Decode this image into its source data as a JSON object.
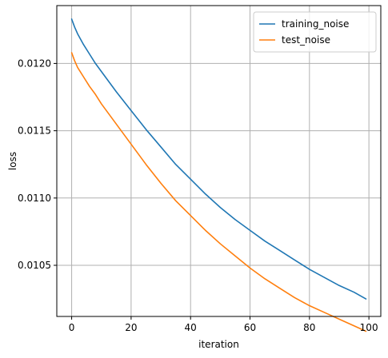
{
  "chart_data": {
    "type": "line",
    "title": "",
    "xlabel": "iteration",
    "ylabel": "loss",
    "xlim": [
      -5,
      104
    ],
    "ylim": [
      0.01012,
      0.01243
    ],
    "xticks": [
      0,
      20,
      40,
      60,
      80,
      100
    ],
    "yticks": [
      0.0105,
      0.011,
      0.0115,
      0.012
    ],
    "xtick_labels": [
      "0",
      "20",
      "40",
      "60",
      "80",
      "100"
    ],
    "ytick_labels": [
      "0.0105",
      "0.0110",
      "0.0115",
      "0.0120"
    ],
    "grid": true,
    "legend_position": "top-right",
    "series": [
      {
        "name": "training_noise",
        "color": "#1f77b4",
        "x": [
          0,
          1,
          2,
          4,
          6,
          8,
          10,
          15,
          20,
          25,
          30,
          35,
          40,
          45,
          50,
          55,
          60,
          65,
          70,
          75,
          80,
          85,
          90,
          95,
          99
        ],
        "y": [
          0.01233,
          0.01227,
          0.01222,
          0.01214,
          0.01207,
          0.012,
          0.01194,
          0.01179,
          0.01165,
          0.01151,
          0.01138,
          0.01125,
          0.01114,
          0.01103,
          0.01093,
          0.01084,
          0.01076,
          0.01068,
          0.01061,
          0.01054,
          0.01047,
          0.01041,
          0.01035,
          0.0103,
          0.01025
        ]
      },
      {
        "name": "test_noise",
        "color": "#ff7f0e",
        "x": [
          0,
          1,
          2,
          4,
          6,
          8,
          10,
          15,
          20,
          25,
          30,
          35,
          40,
          45,
          50,
          55,
          60,
          65,
          70,
          75,
          80,
          85,
          90,
          95,
          99
        ],
        "y": [
          0.01208,
          0.01202,
          0.01197,
          0.0119,
          0.01183,
          0.01177,
          0.0117,
          0.01155,
          0.0114,
          0.01125,
          0.01111,
          0.01098,
          0.01087,
          0.01076,
          0.01066,
          0.01057,
          0.01048,
          0.0104,
          0.01033,
          0.01026,
          0.0102,
          0.01015,
          0.0101,
          0.01005,
          0.01001
        ]
      }
    ]
  }
}
